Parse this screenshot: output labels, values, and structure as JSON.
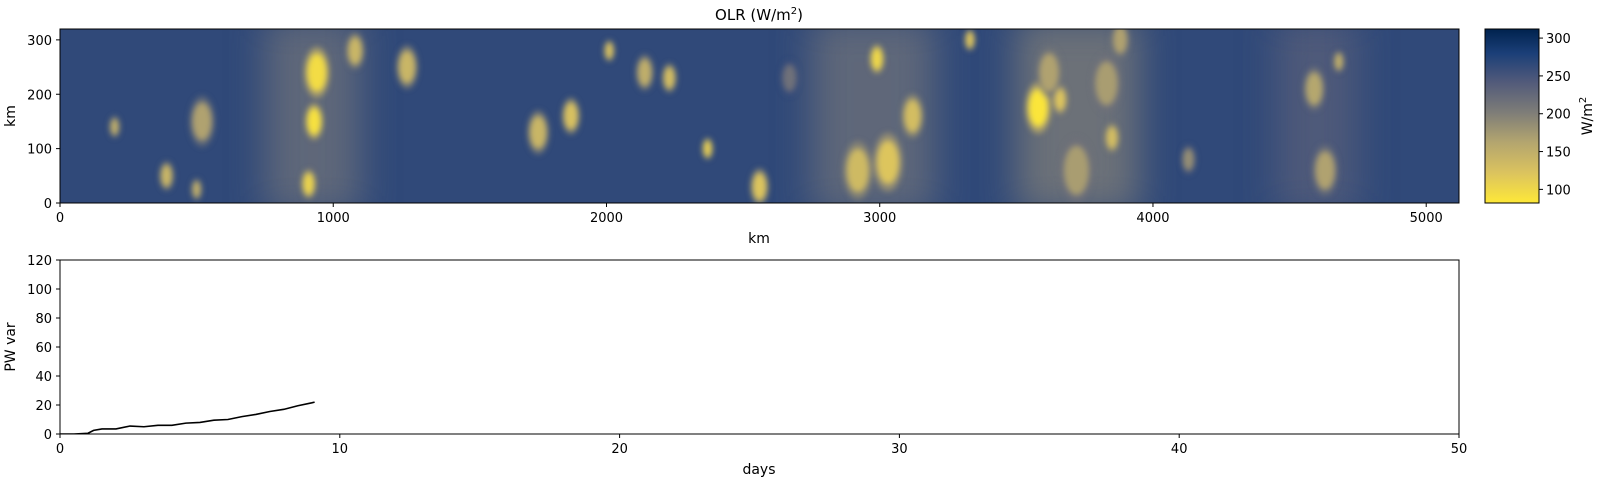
{
  "chart_data": [
    {
      "type": "heatmap",
      "title": "OLR (W/m",
      "title_superscript": "2",
      "title_suffix": ")",
      "xlabel": "km",
      "ylabel": "km",
      "xlim": [
        0,
        5120
      ],
      "ylim": [
        0,
        320
      ],
      "xticks": [
        "0",
        "1000",
        "2000",
        "3000",
        "4000",
        "5000"
      ],
      "yticks": [
        "0",
        "100",
        "200",
        "300"
      ],
      "colormap": "cividis",
      "background_value": 265,
      "colorbar": {
        "label": "W/m",
        "label_superscript": "2",
        "range": [
          82,
          312
        ],
        "ticks": [
          "100",
          "150",
          "200",
          "250",
          "300"
        ]
      },
      "bands": [
        {
          "x": [
            750,
            1100
          ],
          "value": 215
        },
        {
          "x": [
            2750,
            3200
          ],
          "value": 215
        },
        {
          "x": [
            3500,
            3950
          ],
          "value": 200
        },
        {
          "x": [
            4450,
            4750
          ],
          "value": 235
        }
      ],
      "cells": [
        {
          "x": 940,
          "y": 240,
          "r": 35,
          "value": 95
        },
        {
          "x": 930,
          "y": 150,
          "r": 25,
          "value": 90
        },
        {
          "x": 910,
          "y": 35,
          "r": 20,
          "value": 105
        },
        {
          "x": 1080,
          "y": 280,
          "r": 25,
          "value": 140
        },
        {
          "x": 1270,
          "y": 250,
          "r": 30,
          "value": 140
        },
        {
          "x": 520,
          "y": 150,
          "r": 35,
          "value": 165
        },
        {
          "x": 390,
          "y": 50,
          "r": 20,
          "value": 140
        },
        {
          "x": 200,
          "y": 140,
          "r": 15,
          "value": 150
        },
        {
          "x": 500,
          "y": 25,
          "r": 15,
          "value": 150
        },
        {
          "x": 1750,
          "y": 130,
          "r": 30,
          "value": 140
        },
        {
          "x": 1870,
          "y": 160,
          "r": 25,
          "value": 125
        },
        {
          "x": 2010,
          "y": 280,
          "r": 15,
          "value": 125
        },
        {
          "x": 2140,
          "y": 240,
          "r": 25,
          "value": 150
        },
        {
          "x": 2230,
          "y": 230,
          "r": 20,
          "value": 130
        },
        {
          "x": 2370,
          "y": 100,
          "r": 15,
          "value": 110
        },
        {
          "x": 2560,
          "y": 30,
          "r": 25,
          "value": 120
        },
        {
          "x": 2920,
          "y": 60,
          "r": 40,
          "value": 135
        },
        {
          "x": 3030,
          "y": 75,
          "r": 40,
          "value": 120
        },
        {
          "x": 3120,
          "y": 160,
          "r": 30,
          "value": 130
        },
        {
          "x": 2990,
          "y": 265,
          "r": 20,
          "value": 100
        },
        {
          "x": 3330,
          "y": 300,
          "r": 15,
          "value": 120
        },
        {
          "x": 3580,
          "y": 175,
          "r": 35,
          "value": 85
        },
        {
          "x": 3660,
          "y": 190,
          "r": 20,
          "value": 120
        },
        {
          "x": 3620,
          "y": 240,
          "r": 35,
          "value": 165
        },
        {
          "x": 3720,
          "y": 60,
          "r": 45,
          "value": 170
        },
        {
          "x": 3830,
          "y": 220,
          "r": 40,
          "value": 170
        },
        {
          "x": 3880,
          "y": 300,
          "r": 25,
          "value": 165
        },
        {
          "x": 3850,
          "y": 120,
          "r": 20,
          "value": 130
        },
        {
          "x": 4630,
          "y": 60,
          "r": 35,
          "value": 165
        },
        {
          "x": 4590,
          "y": 210,
          "r": 30,
          "value": 160
        },
        {
          "x": 4680,
          "y": 260,
          "r": 15,
          "value": 150
        },
        {
          "x": 4130,
          "y": 80,
          "r": 20,
          "value": 185
        },
        {
          "x": 2670,
          "y": 230,
          "r": 25,
          "value": 215
        }
      ]
    },
    {
      "type": "line",
      "title": "",
      "xlabel": "days",
      "ylabel": "PW var",
      "xlim": [
        0,
        50
      ],
      "ylim": [
        0,
        120
      ],
      "xticks": [
        "0",
        "10",
        "20",
        "30",
        "40",
        "50"
      ],
      "yticks": [
        "0",
        "20",
        "40",
        "60",
        "80",
        "100",
        "120"
      ],
      "series": [
        {
          "color": "#000000",
          "x": [
            0,
            0.5,
            1.0,
            1.2,
            1.5,
            2.0,
            2.5,
            3.0,
            3.5,
            4.0,
            4.5,
            5.0,
            5.5,
            6.0,
            6.5,
            7.0,
            7.5,
            8.0,
            8.5,
            9.0,
            9.1
          ],
          "y": [
            0,
            0,
            0.5,
            2.5,
            3.5,
            3.5,
            5.5,
            5.0,
            6.0,
            6.0,
            7.5,
            8.0,
            9.5,
            10.0,
            12.0,
            13.5,
            15.5,
            17.0,
            19.5,
            21.5,
            22.0
          ]
        }
      ]
    }
  ]
}
